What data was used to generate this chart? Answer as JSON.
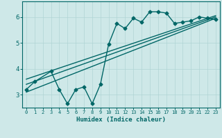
{
  "xlabel": "Humidex (Indice chaleur)",
  "ylabel": "",
  "bg_color": "#cee8e8",
  "line_color": "#006666",
  "xlim": [
    -0.5,
    23.5
  ],
  "ylim": [
    2.5,
    6.6
  ],
  "yticks": [
    3,
    4,
    5,
    6
  ],
  "xticks": [
    0,
    1,
    2,
    3,
    4,
    5,
    6,
    7,
    8,
    9,
    10,
    11,
    12,
    13,
    14,
    15,
    16,
    17,
    18,
    19,
    20,
    21,
    22,
    23
  ],
  "scatter_x": [
    0,
    1,
    3,
    4,
    5,
    6,
    7,
    8,
    9,
    10,
    11,
    12,
    13,
    14,
    15,
    16,
    17,
    18,
    19,
    20,
    21,
    22,
    23
  ],
  "scatter_y": [
    3.2,
    3.5,
    3.9,
    3.2,
    2.65,
    3.2,
    3.3,
    2.65,
    3.4,
    4.95,
    5.75,
    5.55,
    5.95,
    5.8,
    6.2,
    6.2,
    6.15,
    5.75,
    5.8,
    5.85,
    6.0,
    5.95,
    5.9
  ],
  "reg_line_x": [
    0,
    23
  ],
  "reg_line_y": [
    3.4,
    6.0
  ],
  "upper_line_x": [
    0,
    23
  ],
  "upper_line_y": [
    3.6,
    6.05
  ],
  "lower_line_x": [
    0,
    23
  ],
  "lower_line_y": [
    3.1,
    5.95
  ],
  "grid_color": "#b0d4d4",
  "marker": "D",
  "markersize": 2.5,
  "linewidth": 1.0
}
